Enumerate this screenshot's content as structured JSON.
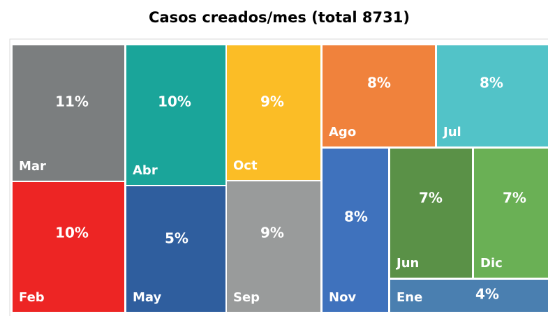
{
  "chart_data": {
    "type": "treemap",
    "title": "Casos creados/mes (total 8731)",
    "categories": [
      "Mar",
      "Feb",
      "Abr",
      "May",
      "Oct",
      "Sep",
      "Ago",
      "Jul",
      "Nov",
      "Jun",
      "Dic",
      "Ene"
    ],
    "values": [
      11,
      10,
      10,
      5,
      9,
      9,
      8,
      8,
      8,
      7,
      7,
      4
    ],
    "value_labels": [
      "11%",
      "10%",
      "10%",
      "5%",
      "9%",
      "9%",
      "8%",
      "8%",
      "8%",
      "7%",
      "7%",
      "4%"
    ],
    "colors": [
      "#7b7e7f",
      "#ed2524",
      "#1aa59a",
      "#2f5e9e",
      "#fbbd26",
      "#999b9b",
      "#f0823c",
      "#52c3c8",
      "#3f72bd",
      "#5a9147",
      "#6ab055",
      "#4a7fb0"
    ]
  }
}
